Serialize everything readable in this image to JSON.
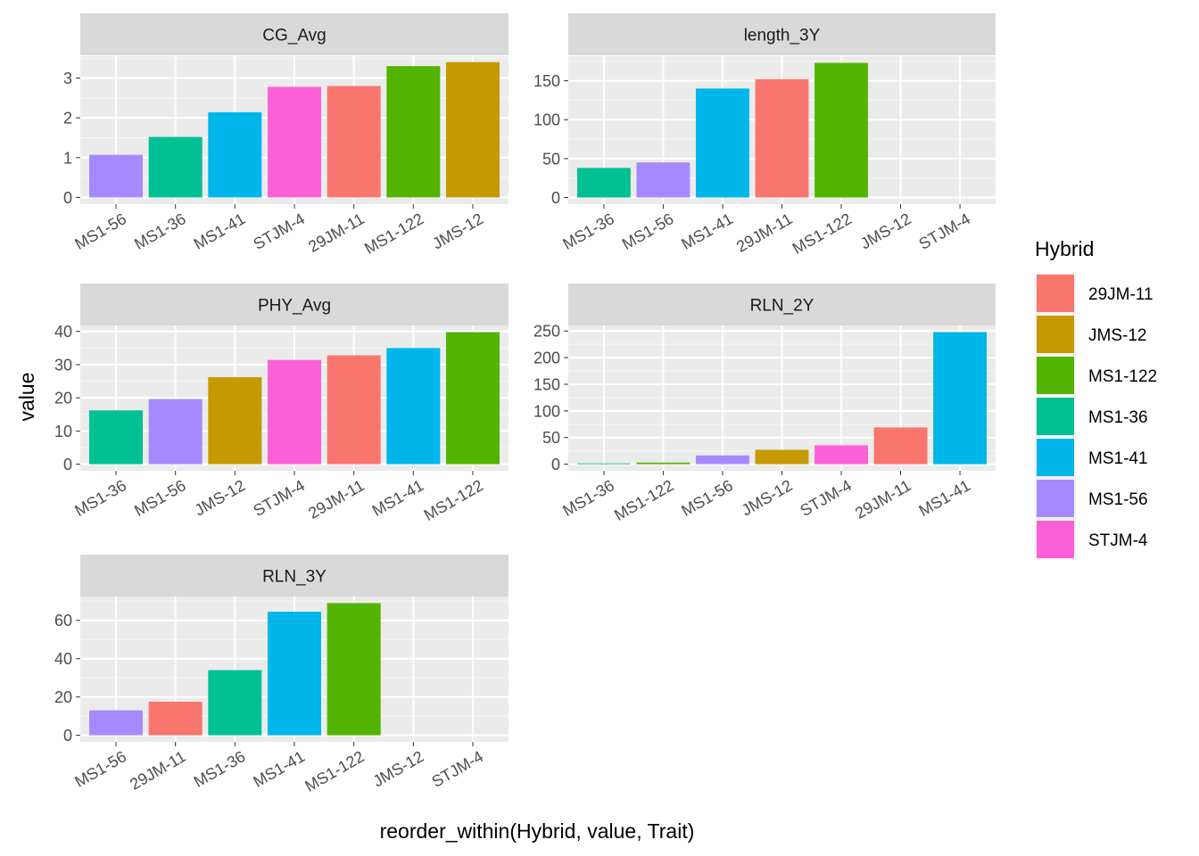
{
  "chart_data": {
    "type": "bar",
    "xlabel": "reorder_within(Hybrid, value, Trait)",
    "ylabel": "value",
    "legend": {
      "title": "Hybrid",
      "placement": "right",
      "entries": [
        {
          "name": "29JM-11",
          "color": "#F8766D"
        },
        {
          "name": "JMS-12",
          "color": "#C49A00"
        },
        {
          "name": "MS1-122",
          "color": "#53B400"
        },
        {
          "name": "MS1-36",
          "color": "#00C094"
        },
        {
          "name": "MS1-41",
          "color": "#00B6EB"
        },
        {
          "name": "MS1-56",
          "color": "#A58AFF"
        },
        {
          "name": "STJM-4",
          "color": "#FB61D7"
        }
      ]
    },
    "facets": [
      {
        "title": "CG_Avg",
        "categories": [
          "MS1-56",
          "MS1-36",
          "MS1-41",
          "STJM-4",
          "29JM-11",
          "MS1-122",
          "JMS-12"
        ],
        "values": [
          1.07,
          1.52,
          2.14,
          2.78,
          2.8,
          3.3,
          3.4
        ],
        "ylim": [
          -0.17,
          3.55
        ],
        "yticks": [
          0,
          1,
          2,
          3
        ]
      },
      {
        "title": "length_3Y",
        "categories": [
          "MS1-36",
          "MS1-56",
          "MS1-41",
          "29JM-11",
          "MS1-122",
          "JMS-12",
          "STJM-4"
        ],
        "values": [
          38,
          45,
          140,
          152,
          173,
          null,
          null
        ],
        "ylim": [
          -8.6,
          181.6
        ],
        "yticks": [
          0,
          50,
          100,
          150
        ]
      },
      {
        "title": "PHY_Avg",
        "categories": [
          "MS1-36",
          "MS1-56",
          "JMS-12",
          "STJM-4",
          "29JM-11",
          "MS1-41",
          "MS1-122"
        ],
        "values": [
          16.2,
          19.6,
          26.2,
          31.4,
          32.8,
          35,
          39.8
        ],
        "ylim": [
          -2,
          41.8
        ],
        "yticks": [
          0,
          10,
          20,
          30,
          40
        ]
      },
      {
        "title": "RLN_2Y",
        "categories": [
          "MS1-36",
          "MS1-122",
          "MS1-56",
          "JMS-12",
          "STJM-4",
          "29JM-11",
          "MS1-41"
        ],
        "values": [
          1.5,
          3,
          16.5,
          27,
          35.5,
          69,
          248
        ],
        "ylim": [
          -12.4,
          260.4
        ],
        "yticks": [
          0,
          50,
          100,
          150,
          200,
          250
        ]
      },
      {
        "title": "RLN_3Y",
        "categories": [
          "MS1-56",
          "29JM-11",
          "MS1-36",
          "MS1-41",
          "MS1-122",
          "JMS-12",
          "STJM-4"
        ],
        "values": [
          13,
          17.5,
          34,
          64.5,
          69,
          null,
          null
        ],
        "ylim": [
          -3.45,
          72.45
        ],
        "yticks": [
          0,
          20,
          40,
          60
        ]
      }
    ]
  }
}
